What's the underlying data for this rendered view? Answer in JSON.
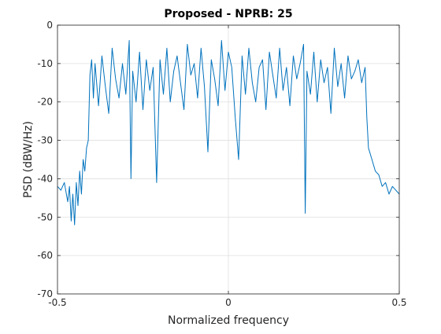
{
  "chart_data": {
    "type": "line",
    "title": "Proposed - NPRB: 25",
    "xlabel": "Normalized frequency",
    "ylabel": "PSD (dBW/Hz)",
    "xlim": [
      -0.5,
      0.5
    ],
    "ylim": [
      -70,
      0
    ],
    "xticks": [
      -0.5,
      0,
      0.5
    ],
    "xtick_labels": [
      "-0.5",
      "0",
      "0.5"
    ],
    "yticks": [
      0,
      -10,
      -20,
      -30,
      -40,
      -50,
      -60,
      -70
    ],
    "ytick_labels": [
      "0",
      "-10",
      "-20",
      "-30",
      "-40",
      "-50",
      "-60",
      "-70"
    ],
    "grid": true,
    "line_color": "#0072BD",
    "series": [
      {
        "x": [
          -0.5,
          -0.49,
          -0.48,
          -0.47,
          -0.465,
          -0.46,
          -0.455,
          -0.45,
          -0.445,
          -0.44,
          -0.435,
          -0.43,
          -0.425,
          -0.42,
          -0.415,
          -0.41,
          -0.405,
          -0.4,
          -0.395,
          -0.39,
          -0.38,
          -0.37,
          -0.36,
          -0.35,
          -0.34,
          -0.33,
          -0.32,
          -0.31,
          -0.3,
          -0.29,
          -0.285,
          -0.28,
          -0.27,
          -0.26,
          -0.25,
          -0.24,
          -0.23,
          -0.22,
          -0.21,
          -0.2,
          -0.19,
          -0.18,
          -0.17,
          -0.16,
          -0.15,
          -0.14,
          -0.13,
          -0.12,
          -0.11,
          -0.1,
          -0.09,
          -0.08,
          -0.07,
          -0.06,
          -0.05,
          -0.04,
          -0.03,
          -0.02,
          -0.01,
          0.0,
          0.01,
          0.02,
          0.03,
          0.04,
          0.05,
          0.06,
          0.07,
          0.08,
          0.09,
          0.1,
          0.11,
          0.12,
          0.13,
          0.14,
          0.15,
          0.16,
          0.17,
          0.18,
          0.19,
          0.2,
          0.21,
          0.22,
          0.225,
          0.23,
          0.24,
          0.25,
          0.26,
          0.27,
          0.28,
          0.29,
          0.3,
          0.31,
          0.32,
          0.33,
          0.34,
          0.35,
          0.36,
          0.37,
          0.38,
          0.39,
          0.4,
          0.405,
          0.41,
          0.42,
          0.43,
          0.44,
          0.45,
          0.46,
          0.47,
          0.48,
          0.49,
          0.5
        ],
        "y": [
          -42,
          -43,
          -41,
          -46,
          -42,
          -51,
          -44,
          -52,
          -41,
          -47,
          -38,
          -44,
          -35,
          -38,
          -32,
          -30,
          -13,
          -9,
          -19,
          -10,
          -21,
          -8,
          -16,
          -23,
          -6,
          -14,
          -19,
          -10,
          -18,
          -4,
          -40,
          -12,
          -20,
          -7,
          -22,
          -9,
          -17,
          -11,
          -41,
          -9,
          -18,
          -6,
          -20,
          -12,
          -8,
          -15,
          -22,
          -5,
          -13,
          -10,
          -19,
          -6,
          -16,
          -33,
          -9,
          -14,
          -21,
          -4,
          -17,
          -7,
          -11,
          -24,
          -35,
          -8,
          -18,
          -6,
          -15,
          -20,
          -11,
          -9,
          -22,
          -7,
          -13,
          -19,
          -6,
          -17,
          -11,
          -21,
          -8,
          -14,
          -10,
          -5,
          -49,
          -12,
          -18,
          -7,
          -20,
          -9,
          -15,
          -11,
          -23,
          -6,
          -16,
          -10,
          -19,
          -8,
          -14,
          -12,
          -9,
          -15,
          -11,
          -24,
          -32,
          -35,
          -38,
          -39,
          -42,
          -41,
          -44,
          -42,
          -43,
          -44
        ]
      }
    ]
  }
}
